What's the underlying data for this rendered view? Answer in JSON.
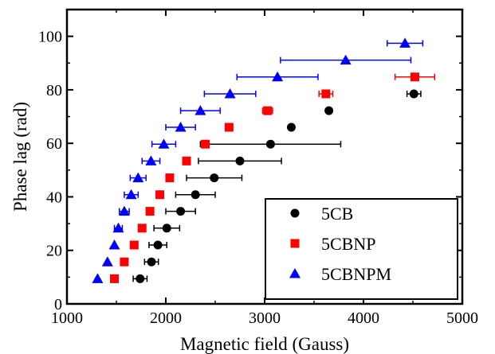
{
  "chart_data": {
    "type": "scatter",
    "xlabel": "Magnetic field (Gauss)",
    "ylabel": "Phase lag (rad)",
    "xlim": [
      1000,
      5000
    ],
    "ylim": [
      0,
      110
    ],
    "x_ticks": [
      "1000",
      "2000",
      "3000",
      "4000",
      "5000"
    ],
    "y_ticks": [
      "0",
      "20",
      "40",
      "60",
      "80",
      "100"
    ],
    "error_bars": "horizontal",
    "grid": false,
    "legend_position": "bottom-right",
    "series": [
      {
        "name": "5CB",
        "marker": "circle",
        "color": "#000000",
        "points": [
          {
            "x": 1740,
            "y": 9.4,
            "xerr": 70
          },
          {
            "x": 1855,
            "y": 15.7,
            "xerr": 70
          },
          {
            "x": 1920,
            "y": 22.0,
            "xerr": 90
          },
          {
            "x": 2010,
            "y": 28.3,
            "xerr": 130
          },
          {
            "x": 2150,
            "y": 34.6,
            "xerr": 150
          },
          {
            "x": 2300,
            "y": 40.8,
            "xerr": 200
          },
          {
            "x": 2490,
            "y": 47.1,
            "xerr": 280
          },
          {
            "x": 2750,
            "y": 53.4,
            "xerr": 420
          },
          {
            "x": 3060,
            "y": 59.7,
            "xerr": 710
          },
          {
            "x": 3270,
            "y": 66.0,
            "xerr": 0
          },
          {
            "x": 3650,
            "y": 72.2,
            "xerr": 0
          },
          {
            "x": 4510,
            "y": 78.5,
            "xerr": 70
          }
        ]
      },
      {
        "name": "5CBNP",
        "marker": "square",
        "color": "#ff0000",
        "points": [
          {
            "x": 1480,
            "y": 9.4,
            "xerr": 0
          },
          {
            "x": 1580,
            "y": 15.7,
            "xerr": 0
          },
          {
            "x": 1680,
            "y": 22.0,
            "xerr": 0
          },
          {
            "x": 1760,
            "y": 28.3,
            "xerr": 0
          },
          {
            "x": 1840,
            "y": 34.6,
            "xerr": 0
          },
          {
            "x": 1940,
            "y": 40.8,
            "xerr": 0
          },
          {
            "x": 2040,
            "y": 47.1,
            "xerr": 0
          },
          {
            "x": 2210,
            "y": 53.4,
            "xerr": 0
          },
          {
            "x": 2400,
            "y": 59.7,
            "xerr": 0
          },
          {
            "x": 2640,
            "y": 66.0,
            "xerr": 0
          },
          {
            "x": 3030,
            "y": 72.2,
            "xerr": 50
          },
          {
            "x": 3620,
            "y": 78.5,
            "xerr": 70
          },
          {
            "x": 4520,
            "y": 84.8,
            "xerr": 200
          }
        ]
      },
      {
        "name": "5CBNPM",
        "marker": "triangle",
        "color": "#0000ff",
        "points": [
          {
            "x": 1310,
            "y": 9.4,
            "xerr": 0
          },
          {
            "x": 1410,
            "y": 15.7,
            "xerr": 0
          },
          {
            "x": 1480,
            "y": 22.0,
            "xerr": 0
          },
          {
            "x": 1520,
            "y": 28.3,
            "xerr": 40
          },
          {
            "x": 1580,
            "y": 34.6,
            "xerr": 50
          },
          {
            "x": 1650,
            "y": 40.8,
            "xerr": 70
          },
          {
            "x": 1720,
            "y": 47.1,
            "xerr": 80
          },
          {
            "x": 1850,
            "y": 53.4,
            "xerr": 90
          },
          {
            "x": 1980,
            "y": 59.7,
            "xerr": 120
          },
          {
            "x": 2150,
            "y": 66.0,
            "xerr": 150
          },
          {
            "x": 2350,
            "y": 72.2,
            "xerr": 200
          },
          {
            "x": 2650,
            "y": 78.5,
            "xerr": 260
          },
          {
            "x": 3130,
            "y": 84.8,
            "xerr": 410
          },
          {
            "x": 3820,
            "y": 91.1,
            "xerr": 660
          },
          {
            "x": 4420,
            "y": 97.4,
            "xerr": 180
          }
        ]
      }
    ]
  }
}
